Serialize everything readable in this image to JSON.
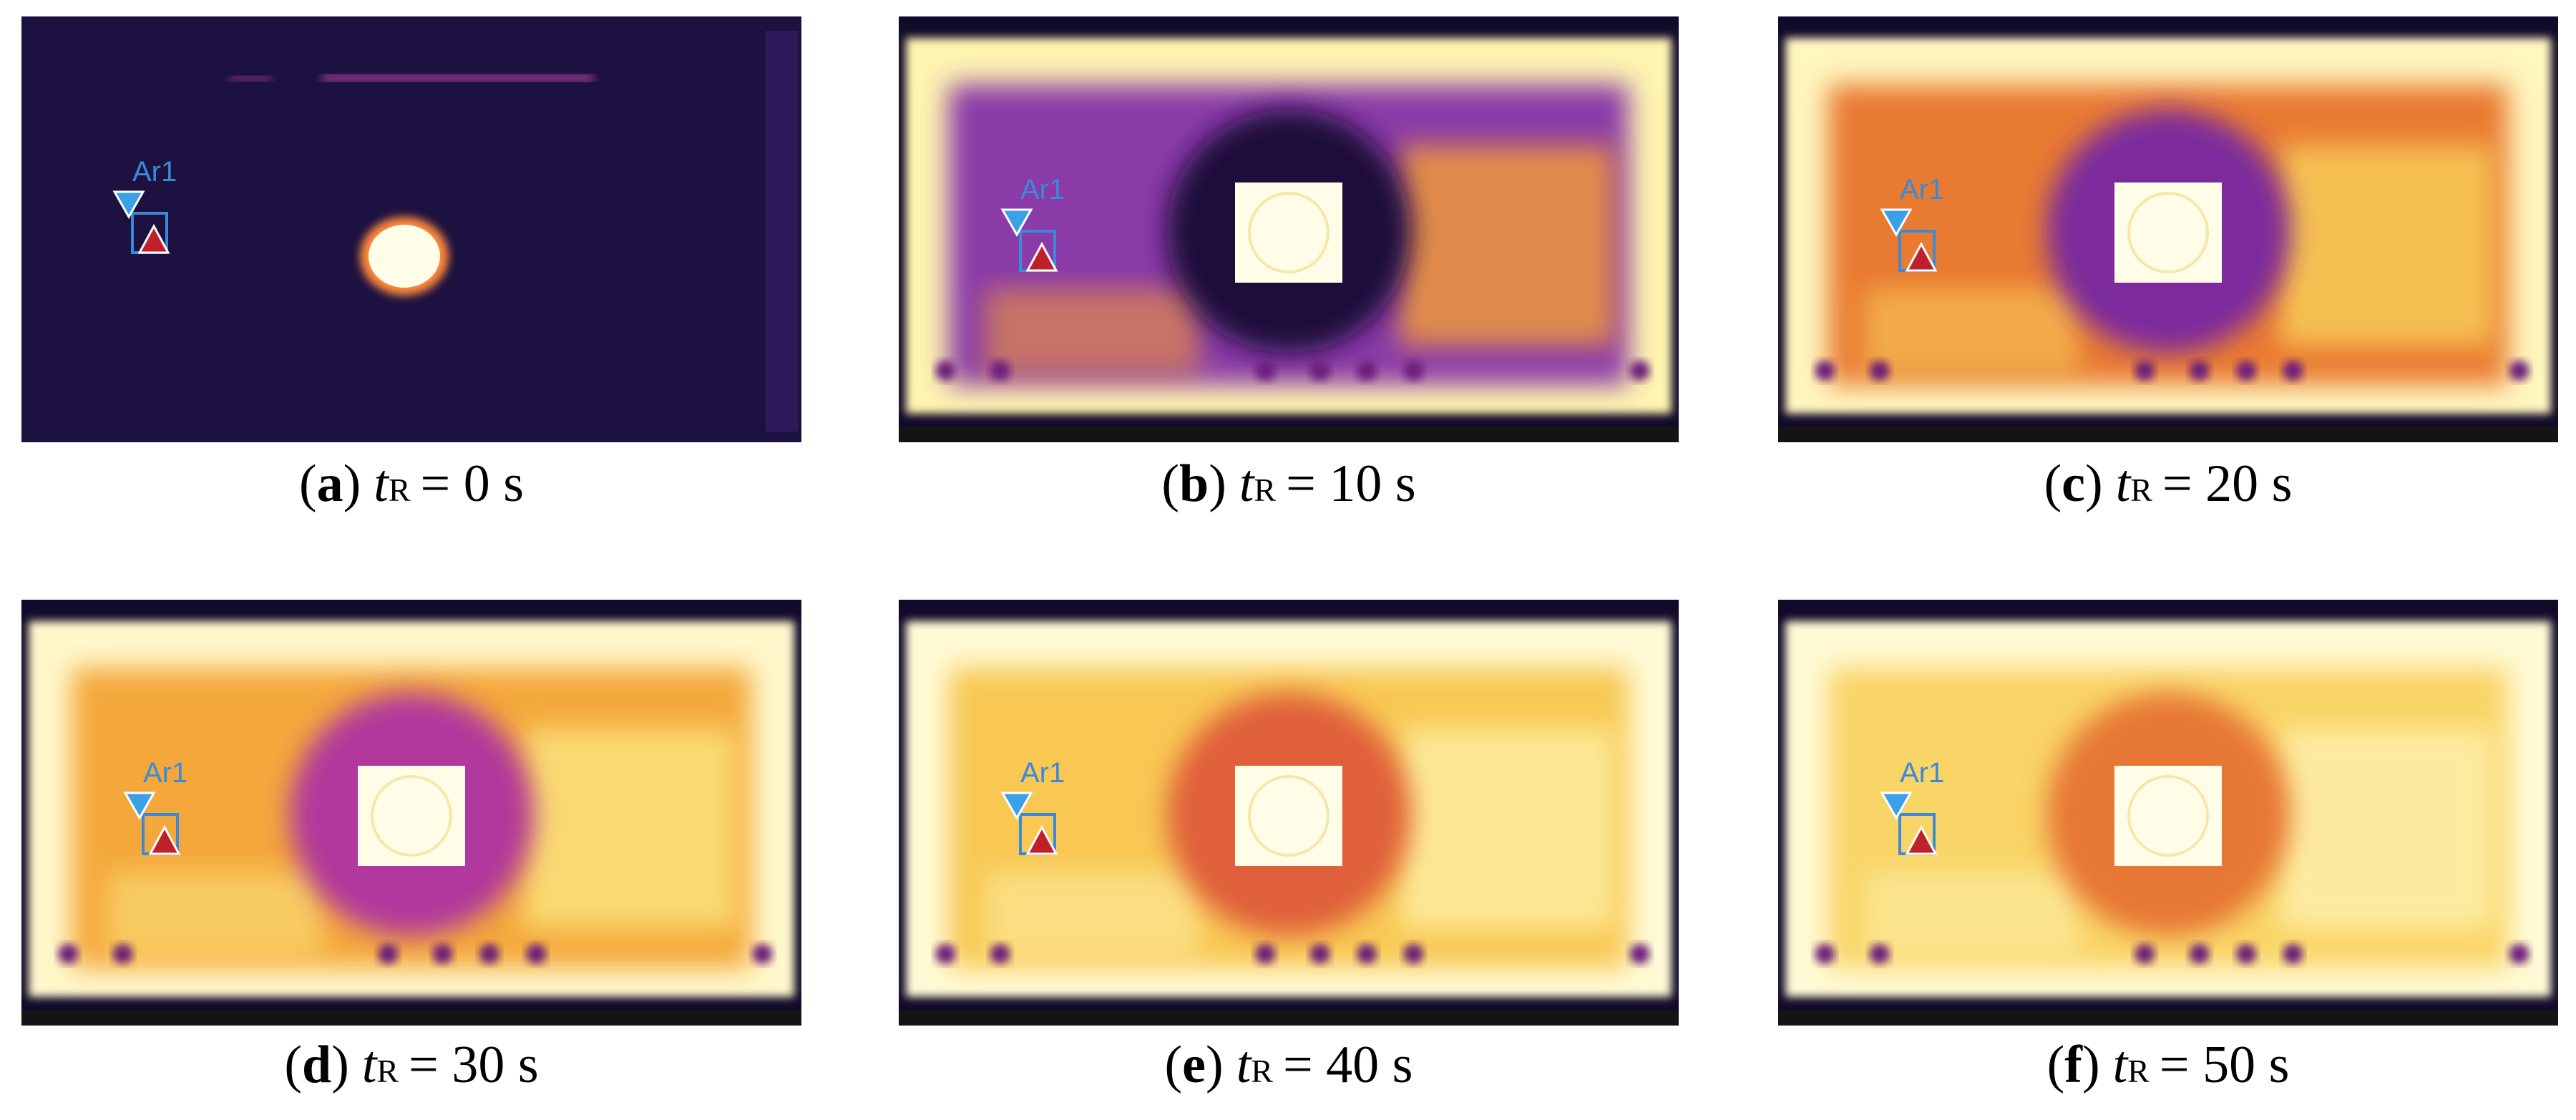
{
  "panels": [
    {
      "open": "(",
      "letter": "a",
      "close": ")",
      "variable": "t",
      "subscript": "R",
      "equals": "= 0 s",
      "marker": "Ar1"
    },
    {
      "open": "(",
      "letter": "b",
      "close": ")",
      "variable": "t",
      "subscript": "R",
      "equals": "= 10 s",
      "marker": "Ar1"
    },
    {
      "open": "(",
      "letter": "c",
      "close": ")",
      "variable": "t",
      "subscript": "R",
      "equals": "= 20 s",
      "marker": "Ar1"
    },
    {
      "open": "(",
      "letter": "d",
      "close": ")",
      "variable": "t",
      "subscript": "R",
      "equals": "= 30 s",
      "marker": "Ar1"
    },
    {
      "open": "(",
      "letter": "e",
      "close": ")",
      "variable": "t",
      "subscript": "R",
      "equals": "= 40 s",
      "marker": "Ar1"
    },
    {
      "open": "(",
      "letter": "f",
      "close": ")",
      "variable": "t",
      "subscript": "R",
      "equals": "= 50 s",
      "marker": "Ar1"
    }
  ]
}
